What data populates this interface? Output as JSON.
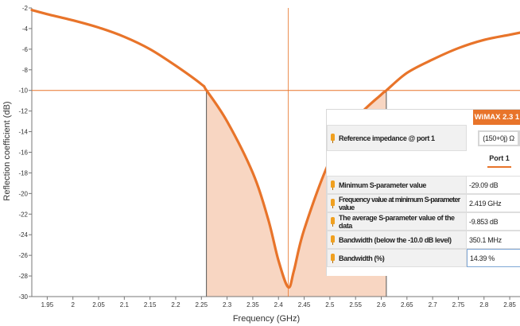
{
  "chart_data": {
    "type": "line",
    "title": "",
    "xlabel": "Frequency (GHz)",
    "ylabel": "Reflection coefficient (dB)",
    "xlim": [
      1.92,
      2.87
    ],
    "ylim": [
      -30,
      -2
    ],
    "x_ticks": [
      "1.95",
      "2",
      "2.05",
      "2.1",
      "2.15",
      "2.2",
      "2.25",
      "2.3",
      "2.35",
      "2.4",
      "2.45",
      "2.5",
      "2.55",
      "2.6",
      "2.65",
      "2.7",
      "2.75",
      "2.8",
      "2.85"
    ],
    "y_ticks": [
      "-2",
      "-4",
      "-6",
      "-8",
      "-10",
      "-12",
      "-14",
      "-16",
      "-18",
      "-20",
      "-22",
      "-24",
      "-26",
      "-28",
      "-30"
    ],
    "series": [
      {
        "x": [
          1.92,
          1.95,
          2.0,
          2.05,
          2.1,
          2.15,
          2.2,
          2.25,
          2.26,
          2.3,
          2.35,
          2.38,
          2.4,
          2.419,
          2.43,
          2.45,
          2.5,
          2.55,
          2.6,
          2.61,
          2.65,
          2.7,
          2.75,
          2.8,
          2.85,
          2.87
        ],
        "y": [
          -2.2,
          -2.6,
          -3.2,
          -3.9,
          -4.8,
          -6.0,
          -7.6,
          -9.4,
          -10.0,
          -13.0,
          -18.0,
          -22.5,
          -26.5,
          -29.09,
          -27.5,
          -23.5,
          -16.8,
          -12.8,
          -10.4,
          -10.0,
          -8.3,
          -7.0,
          -5.9,
          -5.1,
          -4.6,
          -4.4
        ],
        "color": "#e8742a"
      }
    ],
    "threshold_db": -10.0,
    "bandwidth_region": [
      2.2598,
      2.6099
    ],
    "min_marker": {
      "x": 2.419,
      "y": -29.09
    },
    "grid": false
  },
  "panel": {
    "header": "WiMAX 2.3 1",
    "reference_label": "Reference impedance @ port 1",
    "reference_value": "(150+0j) Ω",
    "port_tab": "Port 1",
    "rows": [
      {
        "label": "Minimum S-parameter value",
        "value": "-29.09 dB"
      },
      {
        "label": "Frequency value at minimum S-parameter value",
        "value": "2.419 GHz"
      },
      {
        "label": "The average S-parameter value of the data",
        "value": "-9.853 dB"
      },
      {
        "label": "Bandwidth (below the -10.0 dB level)",
        "value": "350.1 MHz"
      },
      {
        "label": "Bandwidth (%)",
        "value": "14.39 %"
      }
    ]
  },
  "colors": {
    "curve": "#e8742a",
    "fill": "#f8d6c2",
    "crosshair": "#e8742a",
    "header": "#e8742a"
  }
}
